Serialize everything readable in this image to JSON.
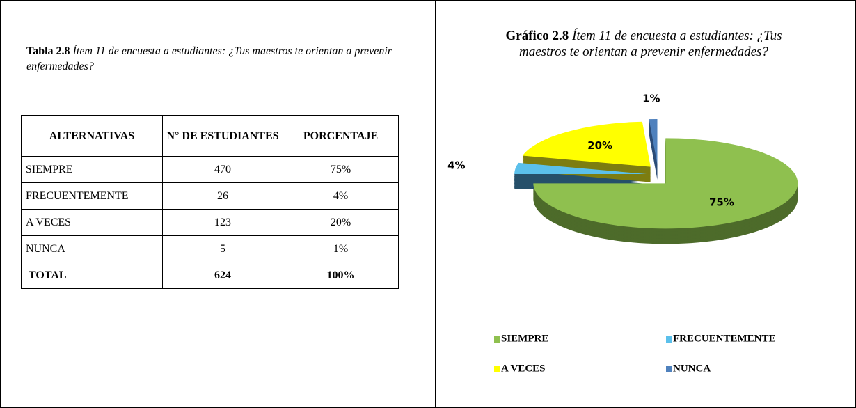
{
  "table_caption": {
    "label": "Tabla 2.8",
    "text": "Ítem 11 de encuesta a estudiantes: ¿Tus maestros te orientan a prevenir enfermedades?"
  },
  "table": {
    "header": [
      "ALTERNATIVAS",
      "N° DE ESTUDIANTES",
      "PORCENTAJE"
    ],
    "rows": [
      [
        "SIEMPRE",
        "470",
        "75%"
      ],
      [
        "FRECUENTEMENTE",
        "26",
        "4%"
      ],
      [
        "A VECES",
        "123",
        "20%"
      ],
      [
        "NUNCA",
        "5",
        "1%"
      ]
    ],
    "total": [
      "TOTAL",
      "624",
      "100%"
    ]
  },
  "chart_data": {
    "type": "pie",
    "title_label": "Gráfico 2.8",
    "title": "Ítem 11 de encuesta a estudiantes: ¿Tus maestros te orientan a prevenir enfermedades?",
    "categories": [
      "SIEMPRE",
      "FRECUENTEMENTE",
      "A VECES",
      "NUNCA"
    ],
    "values": [
      75,
      4,
      20,
      1
    ],
    "value_labels": [
      "75%",
      "4%",
      "20%",
      "1%"
    ],
    "colors": [
      "#8fc04f",
      "#5bc0eb",
      "#ffff00",
      "#4f81bd"
    ],
    "side_colors": [
      "#4d6b2a",
      "#26506a",
      "#7d7d10",
      "#2d4d78"
    ]
  }
}
